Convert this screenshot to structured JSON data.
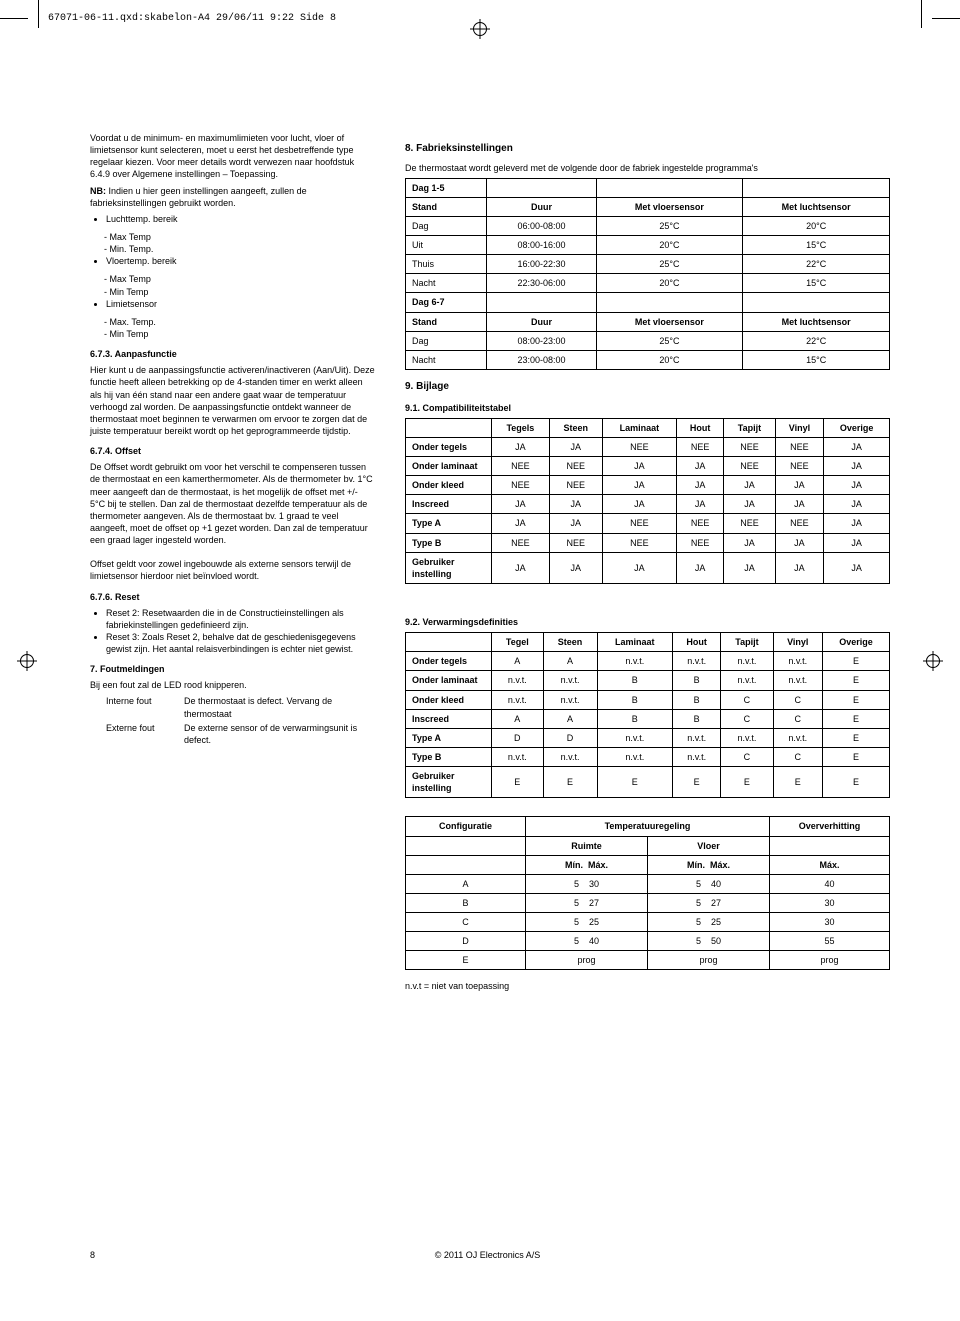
{
  "print_header": "67071-06-11.qxd:skabelon-A4  29/06/11  9:22  Side 8",
  "left": {
    "intro1": "Voordat u de minimum- en maximumlimieten voor lucht, vloer of limietsensor kunt selecteren, moet u eerst het desbetreffende type regelaar kiezen. Voor meer details wordt verwezen naar hoofdstuk 6.4.9 over Algemene instellingen – Toepassing.",
    "nb": "NB: ",
    "nb_text": "Indien u hier geen instellingen aangeeft, zullen de fabrieksinstellingen gebruikt worden.",
    "b1": "Luchttemp. bereik",
    "b1a": "Max Temp",
    "b1b": "Min. Temp.",
    "b2": "Vloertemp. bereik",
    "b2a": "Max Temp",
    "b2b": "Min Temp",
    "b3": "Limietsensor",
    "b3a": "Max. Temp.",
    "b3b": "Min Temp",
    "h673": "6.7.3. Aanpasfunctie",
    "p673": "Hier kunt u de aanpassingsfunctie activeren/inactiveren (Aan/Uit). Deze functie heeft alleen betrekking op de 4-standen timer en werkt alleen als hij van één stand naar een andere gaat waar de temperatuur verhoogd zal worden. De aanpassingsfunctie ontdekt wanneer de thermostaat moet beginnen te verwarmen om ervoor te zorgen dat de juiste temperatuur bereikt wordt op het geprogrammeerde tijdstip.",
    "h674": "6.7.4. Offset",
    "p674": "De Offset wordt gebruikt om voor het verschil te compenseren tussen de thermostaat en een kamerthermometer. Als de thermometer bv. 1°C meer aangeeft dan de thermostaat, is het mogelijk de offset met +/- 5°C bij te stellen. Dan zal de thermostaat dezelfde temperatuur als de thermometer aangeven. Als de thermostaat bv. 1 graad te veel aangeeft, moet de offset op +1 gezet worden. Dan zal de temperatuur een graad lager ingesteld worden.",
    "p674b": "Offset geldt voor zowel ingebouwde als externe sensors terwijl de limietsensor hierdoor niet beïnvloed wordt.",
    "h676": "6.7.6. Reset",
    "r1": "Reset 2: Resetwaarden die in de Constructieinstellingen als fabriekinstellingen gedefinieerd zijn.",
    "r2": "Reset 3: Zoals Reset 2, behalve dat de geschiedenisgegevens gewist zijn. Het aantal relaisverbindingen is echter niet gewist.",
    "h7": "7. Foutmeldingen",
    "p7": "Bij een fout zal de LED rood knipperen.",
    "f1a": "Interne fout",
    "f1b": "De thermostaat is defect. Vervang de thermostaat",
    "f2a": "Externe fout",
    "f2b": "De externe sensor of de verwarmingsunit is defect."
  },
  "right": {
    "h8": "8. Fabrieksinstellingen",
    "p8": "De thermostaat wordt geleverd met de volgende door de fabriek ingestelde programma's",
    "t1": {
      "sub1": "Dag 1-5",
      "head": [
        "Stand",
        "Duur",
        "Met vloersensor",
        "Met luchtsensor"
      ],
      "rows1": [
        [
          "Dag",
          "06:00-08:00",
          "25°C",
          "20°C"
        ],
        [
          "Uit",
          "08:00-16:00",
          "20°C",
          "15°C"
        ],
        [
          "Thuis",
          "16:00-22:30",
          "25°C",
          "22°C"
        ],
        [
          "Nacht",
          "22:30-06:00",
          "20°C",
          "15°C"
        ]
      ],
      "sub2": "Dag 6-7",
      "rows2": [
        [
          "Dag",
          "08:00-23:00",
          "25°C",
          "22°C"
        ],
        [
          "Nacht",
          "23:00-08:00",
          "20°C",
          "15°C"
        ]
      ]
    },
    "h9": "9. Bijlage",
    "h91": "9.1. Compatibiliteitstabel",
    "t91": {
      "cols": [
        "",
        "Tegels",
        "Steen",
        "Laminaat",
        "Hout",
        "Tapijt",
        "Vinyl",
        "Overige"
      ],
      "rows": [
        [
          "Onder tegels",
          "JA",
          "JA",
          "NEE",
          "NEE",
          "NEE",
          "NEE",
          "JA"
        ],
        [
          "Onder laminaat",
          "NEE",
          "NEE",
          "JA",
          "JA",
          "NEE",
          "NEE",
          "JA"
        ],
        [
          "Onder kleed",
          "NEE",
          "NEE",
          "JA",
          "JA",
          "JA",
          "JA",
          "JA"
        ],
        [
          "Inscreed",
          "JA",
          "JA",
          "JA",
          "JA",
          "JA",
          "JA",
          "JA"
        ],
        [
          "Type A",
          "JA",
          "JA",
          "NEE",
          "NEE",
          "NEE",
          "NEE",
          "JA"
        ],
        [
          "Type B",
          "NEE",
          "NEE",
          "NEE",
          "NEE",
          "JA",
          "JA",
          "JA"
        ],
        [
          "Gebruiker instelling",
          "JA",
          "JA",
          "JA",
          "JA",
          "JA",
          "JA",
          "JA"
        ]
      ]
    },
    "h92": "9.2. Verwarmingsdefinities",
    "t92": {
      "cols": [
        "",
        "Tegel",
        "Steen",
        "Laminaat",
        "Hout",
        "Tapijt",
        "Vinyl",
        "Overige"
      ],
      "rows": [
        [
          "Onder tegels",
          "A",
          "A",
          "n.v.t.",
          "n.v.t.",
          "n.v.t.",
          "n.v.t.",
          "E"
        ],
        [
          "Onder laminaat",
          "n.v.t.",
          "n.v.t.",
          "B",
          "B",
          "n.v.t.",
          "n.v.t.",
          "E"
        ],
        [
          "Onder kleed",
          "n.v.t.",
          "n.v.t.",
          "B",
          "B",
          "C",
          "C",
          "E"
        ],
        [
          "Inscreed",
          "A",
          "A",
          "B",
          "B",
          "C",
          "C",
          "E"
        ],
        [
          "Type A",
          "D",
          "D",
          "n.v.t.",
          "n.v.t.",
          "n.v.t.",
          "n.v.t.",
          "E"
        ],
        [
          "Type B",
          "n.v.t.",
          "n.v.t.",
          "n.v.t.",
          "n.v.t.",
          "C",
          "C",
          "E"
        ],
        [
          "Gebruiker instelling",
          "E",
          "E",
          "E",
          "E",
          "E",
          "E",
          "E"
        ]
      ]
    },
    "t93": {
      "h_conf": "Configuratie",
      "h_temp": "Temperatuuregeling",
      "h_over": "Oververhitting",
      "h_ruimte": "Ruimte",
      "h_vloer": "Vloer",
      "h_minmax": "Mín.  Máx.",
      "h_max": "Máx.",
      "rows": [
        [
          "A",
          "5    30",
          "5    40",
          "40"
        ],
        [
          "B",
          "5    27",
          "5    27",
          "30"
        ],
        [
          "C",
          "5    25",
          "5    25",
          "30"
        ],
        [
          "D",
          "5    40",
          "5    50",
          "55"
        ],
        [
          "E",
          "prog",
          "prog",
          "prog"
        ]
      ]
    },
    "nvt": "n.v.t = niet van toepassing"
  },
  "footer": {
    "page": "8",
    "copy": "© 2011 OJ Electronics A/S"
  }
}
